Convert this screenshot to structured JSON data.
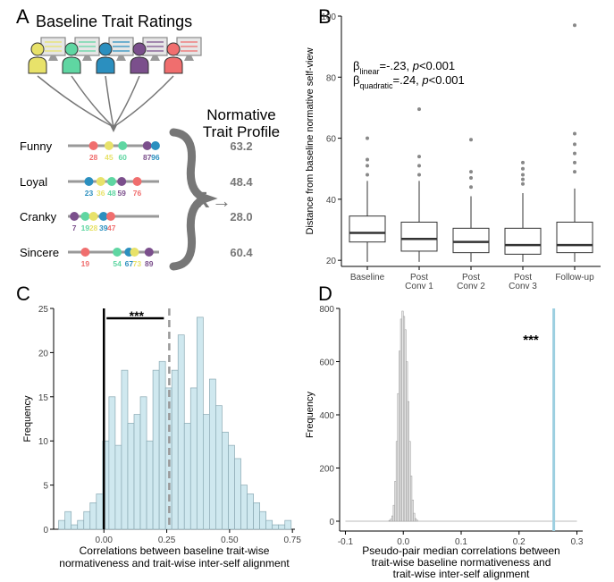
{
  "panel_a": {
    "letter": "A",
    "title": "Baseline Trait Ratings",
    "profile_title_1": "Normative",
    "profile_title_2": "Trait Profile",
    "xbar_symbol": "x̄",
    "arrow_symbol": "→",
    "rater_colors": [
      "#e8e26a",
      "#5fd6a2",
      "#2b8fbf",
      "#7b4f8c",
      "#f06e6e"
    ],
    "traits": [
      {
        "name": "Funny",
        "mean": "63.2",
        "ratings": [
          {
            "v": 28,
            "c": "#f06e6e"
          },
          {
            "v": 45,
            "c": "#e8e26a"
          },
          {
            "v": 60,
            "c": "#5fd6a2"
          },
          {
            "v": 87,
            "c": "#7b4f8c"
          },
          {
            "v": 96,
            "c": "#2b8fbf"
          }
        ]
      },
      {
        "name": "Loyal",
        "mean": "48.4",
        "ratings": [
          {
            "v": 23,
            "c": "#2b8fbf"
          },
          {
            "v": 36,
            "c": "#e8e26a"
          },
          {
            "v": 48,
            "c": "#5fd6a2"
          },
          {
            "v": 59,
            "c": "#7b4f8c"
          },
          {
            "v": 76,
            "c": "#f06e6e"
          }
        ]
      },
      {
        "name": "Cranky",
        "mean": "28.0",
        "ratings": [
          {
            "v": 7,
            "c": "#7b4f8c"
          },
          {
            "v": 19,
            "c": "#5fd6a2"
          },
          {
            "v": 28,
            "c": "#e8e26a"
          },
          {
            "v": 39,
            "c": "#2b8fbf"
          },
          {
            "v": 47,
            "c": "#f06e6e"
          }
        ]
      },
      {
        "name": "Sincere",
        "mean": "60.4",
        "ratings": [
          {
            "v": 19,
            "c": "#f06e6e"
          },
          {
            "v": 54,
            "c": "#5fd6a2"
          },
          {
            "v": 67,
            "c": "#2b8fbf"
          },
          {
            "v": 73,
            "c": "#e8e26a"
          },
          {
            "v": 89,
            "c": "#7b4f8c"
          }
        ]
      }
    ]
  },
  "chart_data": [
    {
      "panel": "B",
      "type": "box",
      "ylabel": "Distance from baseline normative self-view",
      "ylim": [
        18,
        100
      ],
      "yticks": [
        20,
        40,
        60,
        80,
        100
      ],
      "categories": [
        {
          "line1": "Baseline",
          "line2": ""
        },
        {
          "line1": "Post",
          "line2": "Conv 1"
        },
        {
          "line1": "Post",
          "line2": "Conv 2"
        },
        {
          "line1": "Post",
          "line2": "Conv 3"
        },
        {
          "line1": "Follow-up",
          "line2": ""
        }
      ],
      "boxes": [
        {
          "lo": 19.5,
          "q1": 26,
          "median": 29,
          "q3": 34.5,
          "hi": 46,
          "outliers": [
            48,
            51,
            53,
            60
          ]
        },
        {
          "lo": 19.5,
          "q1": 23,
          "median": 27,
          "q3": 32.5,
          "hi": 46,
          "outliers": [
            48,
            51,
            54,
            69.5
          ]
        },
        {
          "lo": 19.5,
          "q1": 22.5,
          "median": 26,
          "q3": 30.5,
          "hi": 41,
          "outliers": [
            44,
            47,
            49,
            59.5
          ]
        },
        {
          "lo": 19.5,
          "q1": 22,
          "median": 25,
          "q3": 30.5,
          "hi": 42,
          "outliers": [
            45,
            46.5,
            48,
            50,
            52
          ]
        },
        {
          "lo": 19.5,
          "q1": 22.5,
          "median": 25,
          "q3": 32.5,
          "hi": 43.5,
          "outliers": [
            49,
            52,
            55,
            58,
            61.5,
            97
          ]
        }
      ],
      "annotation": {
        "l1_beta": "β",
        "l1_sub": "linear",
        "l1_eq": "=-.23, ",
        "l1_p": "p",
        "l1_tail": "<0.001",
        "l2_beta": "β",
        "l2_sub": "quadratic",
        "l2_eq": "=.24, ",
        "l2_p": "p",
        "l2_tail": "<0.001"
      }
    },
    {
      "panel": "C",
      "type": "bar",
      "xlabel_1": "Correlations between baseline trait-wise",
      "xlabel_2": "normativeness and trait-wise inter-self alignment",
      "ylabel": "Frequency",
      "xlim": [
        -0.2,
        0.76
      ],
      "ylim": [
        0,
        25
      ],
      "yticks": [
        0,
        5,
        10,
        15,
        20,
        25
      ],
      "xticks": [
        "0.00",
        "0.25",
        "0.50",
        "0.75"
      ],
      "xtick_values": [
        0,
        0.25,
        0.5,
        0.75
      ],
      "bin_start": -0.18,
      "bin_width": 0.025,
      "values": [
        1,
        2,
        0.5,
        1,
        2,
        3,
        4,
        10,
        15,
        9.5,
        18,
        12,
        13,
        15,
        10,
        18,
        19,
        16,
        18,
        22,
        12,
        16,
        24,
        13,
        17,
        14,
        11,
        9.5,
        8,
        5,
        4,
        3,
        2,
        1,
        0.5,
        0.5,
        1
      ],
      "solid_line_x": 0,
      "dashed_line_x": 0.26,
      "sig": "***"
    },
    {
      "panel": "D",
      "type": "bar",
      "xlabel_1": "Pseudo-pair median correlations between",
      "xlabel_2": "trait-wise baseline normativeness and",
      "xlabel_3": "trait-wise inter-self alignment",
      "ylabel": "Frequency",
      "xlim": [
        -0.11,
        0.31
      ],
      "ylim": [
        0,
        800
      ],
      "yticks": [
        0,
        200,
        400,
        600,
        800
      ],
      "xticks": [
        "-0.1",
        "0.0",
        "0.1",
        "0.2",
        "0.3"
      ],
      "xtick_values": [
        -0.1,
        0,
        0.1,
        0.2,
        0.3
      ],
      "bin_start": -0.025,
      "bin_width": 0.0025,
      "values": [
        3,
        8,
        20,
        60,
        150,
        300,
        480,
        640,
        760,
        790,
        770,
        720,
        600,
        450,
        300,
        170,
        80,
        30,
        10,
        4
      ],
      "observed_line_x": 0.26,
      "sig": "***"
    }
  ]
}
